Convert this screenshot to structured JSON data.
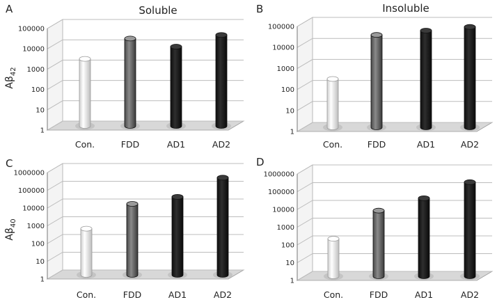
{
  "figure": {
    "row_labels": [
      {
        "main": "Aβ",
        "sub": "42"
      },
      {
        "main": "Aβ",
        "sub": "40"
      }
    ]
  },
  "colors": {
    "Con.": "#f4f4f4",
    "FDD": "#707070",
    "AD1": "#1c1c1c",
    "AD2": "#1c1c1c",
    "grid": "#bcbcbc",
    "floor": "#d8d8d8"
  },
  "chart_data": [
    {
      "panel": "A",
      "type": "bar",
      "title": "Soluble",
      "ylabel": "Aβ42",
      "yscale": "log",
      "ylim": [
        1,
        100000
      ],
      "yticks": [
        "1",
        "10",
        "100",
        "1000",
        "10000",
        "100000"
      ],
      "categories": [
        "Con.",
        "FDD",
        "AD1",
        "AD2"
      ],
      "values": [
        2000,
        20000,
        8000,
        30000
      ],
      "grid": true
    },
    {
      "panel": "B",
      "type": "bar",
      "title": "Insoluble",
      "ylabel": "",
      "yscale": "log",
      "ylim": [
        1,
        100000
      ],
      "yticks": [
        "1",
        "10",
        "100",
        "1000",
        "10000",
        "100000"
      ],
      "categories": [
        "Con.",
        "FDD",
        "AD1",
        "AD2"
      ],
      "values": [
        200,
        25000,
        40000,
        60000
      ],
      "grid": true
    },
    {
      "panel": "C",
      "type": "bar",
      "title": "",
      "ylabel": "Aβ40",
      "yscale": "log",
      "ylim": [
        1,
        1000000
      ],
      "yticks": [
        "1",
        "10",
        "100",
        "1000",
        "10000",
        "100000",
        "1000000"
      ],
      "categories": [
        "Con.",
        "FDD",
        "AD1",
        "AD2"
      ],
      "values": [
        400,
        10000,
        25000,
        300000
      ],
      "grid": true
    },
    {
      "panel": "D",
      "type": "bar",
      "title": "",
      "ylabel": "",
      "yscale": "log",
      "ylim": [
        1,
        1000000
      ],
      "yticks": [
        "1",
        "10",
        "100",
        "1000",
        "10000",
        "100000",
        "1000000"
      ],
      "categories": [
        "Con.",
        "FDD",
        "AD1",
        "AD2"
      ],
      "values": [
        130,
        5000,
        25000,
        200000
      ],
      "grid": true
    }
  ]
}
